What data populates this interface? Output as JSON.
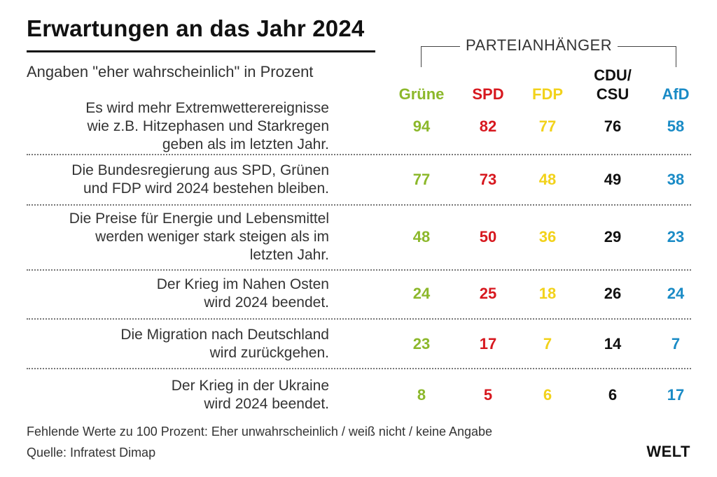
{
  "chart_data": {
    "type": "table",
    "title": "Erwartungen an das Jahr 2024",
    "subtitle": "Angaben \"eher wahrscheinlich\" in Prozent",
    "group_label": "PARTEIANHÄNGER",
    "columns": [
      {
        "name": "Grüne",
        "color": "#8cb82b"
      },
      {
        "name": "SPD",
        "color": "#d7181f"
      },
      {
        "name": "FDP",
        "color": "#f2d21b"
      },
      {
        "name": "CDU/\nCSU",
        "color": "#111111"
      },
      {
        "name": "AfD",
        "color": "#1a8bc6"
      }
    ],
    "rows": [
      {
        "label": "Es wird mehr Extremwetterereignisse\nwie z.B. Hitzephasen und Starkregen\ngeben als im letzten Jahr.",
        "values": [
          94,
          82,
          77,
          76,
          58
        ]
      },
      {
        "label": "Die Bundesregierung aus SPD, Grünen\nund FDP wird 2024 bestehen bleiben.",
        "values": [
          77,
          73,
          48,
          49,
          38
        ]
      },
      {
        "label": "Die Preise für Energie und Lebensmittel\nwerden weniger stark  steigen als im\nletzten Jahr.",
        "values": [
          48,
          50,
          36,
          29,
          23
        ]
      },
      {
        "label": "Der Krieg im Nahen Osten\nwird 2024 beendet.",
        "values": [
          24,
          25,
          18,
          26,
          24
        ]
      },
      {
        "label": "Die Migration nach Deutschland\nwird zurückgehen.",
        "values": [
          23,
          17,
          7,
          14,
          7
        ]
      },
      {
        "label": "Der Krieg in der Ukraine\nwird 2024 beendet.",
        "values": [
          8,
          5,
          6,
          6,
          17
        ]
      }
    ]
  },
  "footer": {
    "note": "Fehlende Werte zu 100 Prozent: Eher unwahrscheinlich / weiß nicht / keine Angabe",
    "source": "Quelle: Infratest Dimap",
    "brand": "WELT"
  }
}
